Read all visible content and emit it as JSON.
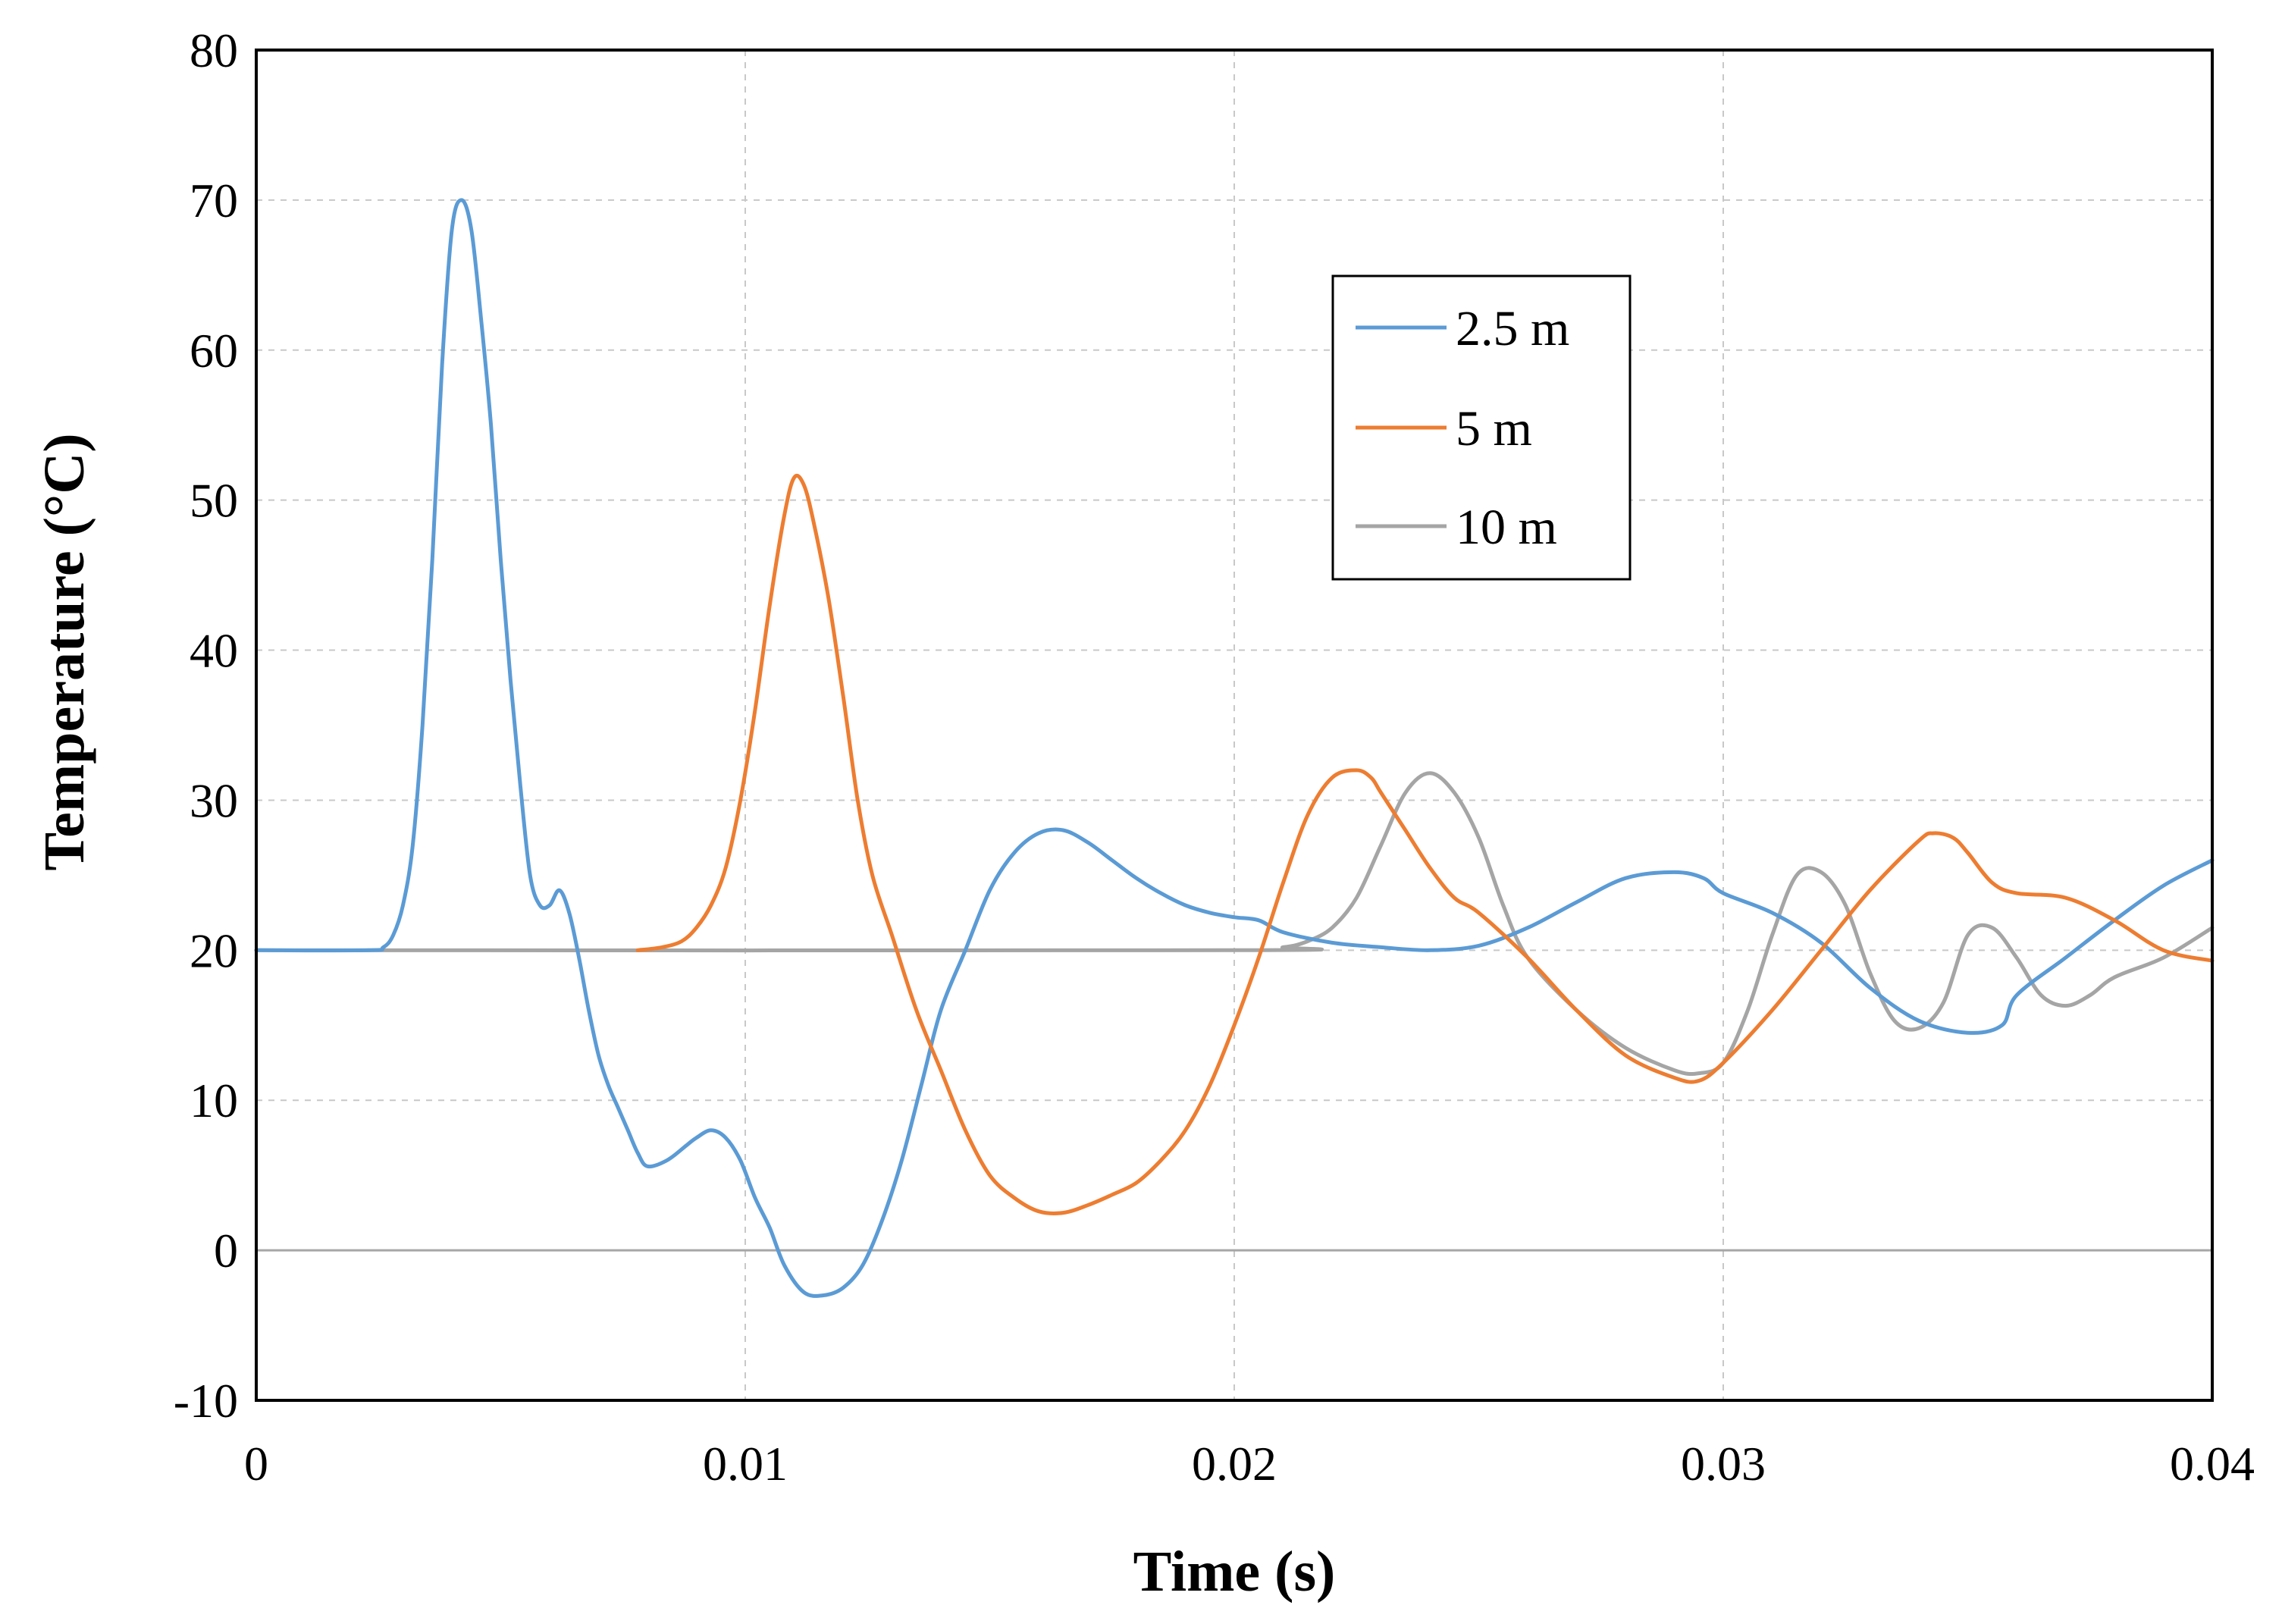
{
  "chart_data": {
    "type": "line",
    "title": "",
    "xlabel": "Time (s)",
    "ylabel": "Temperature (°C)",
    "xlim": [
      0,
      0.04
    ],
    "ylim": [
      -10,
      80
    ],
    "xticks": [
      0,
      0.01,
      0.02,
      0.03,
      0.04
    ],
    "xtick_labels": [
      "0",
      "0.01",
      "0.02",
      "0.03",
      "0.04"
    ],
    "yticks": [
      -10,
      0,
      10,
      20,
      30,
      40,
      50,
      60,
      70,
      80
    ],
    "ytick_labels": [
      "-10",
      "0",
      "10",
      "20",
      "30",
      "40",
      "50",
      "60",
      "70",
      "80"
    ],
    "grid": true,
    "legend_position": "top-right",
    "series": [
      {
        "name": "2.5 m",
        "color": "#5b9bd5",
        "x": [
          0,
          0.0023,
          0.0026,
          0.0028,
          0.003,
          0.0032,
          0.0034,
          0.0036,
          0.0038,
          0.004,
          0.0042,
          0.0044,
          0.0046,
          0.0048,
          0.005,
          0.0052,
          0.0054,
          0.0056,
          0.0058,
          0.006,
          0.0062,
          0.0064,
          0.0066,
          0.0068,
          0.007,
          0.0072,
          0.0074,
          0.0076,
          0.0078,
          0.008,
          0.0084,
          0.0088,
          0.009,
          0.0093,
          0.0096,
          0.0099,
          0.0102,
          0.0105,
          0.0108,
          0.0112,
          0.0116,
          0.012,
          0.0124,
          0.0128,
          0.0132,
          0.0136,
          0.014,
          0.0145,
          0.015,
          0.0155,
          0.016,
          0.0165,
          0.017,
          0.0175,
          0.018,
          0.0185,
          0.019,
          0.0195,
          0.02,
          0.0205,
          0.021,
          0.022,
          0.023,
          0.024,
          0.025,
          0.026,
          0.027,
          0.028,
          0.029,
          0.0296,
          0.03,
          0.031,
          0.032,
          0.033,
          0.034,
          0.035,
          0.0357,
          0.036,
          0.037,
          0.038,
          0.039,
          0.04
        ],
        "values": [
          20,
          20,
          20.2,
          21,
          23,
          27,
          35,
          46,
          59,
          68,
          70,
          68,
          62,
          55,
          46,
          38,
          31,
          25,
          23,
          23,
          24,
          22.5,
          19.5,
          16,
          13,
          11,
          9.5,
          8,
          6.5,
          5.6,
          6,
          7,
          7.5,
          8,
          7.5,
          6,
          3.5,
          1.5,
          -1,
          -2.8,
          -3,
          -2.5,
          -1,
          2,
          6,
          11,
          16,
          20,
          24,
          26.5,
          27.8,
          28,
          27.2,
          26,
          24.8,
          23.8,
          23,
          22.5,
          22.2,
          22,
          21.2,
          20.5,
          20.2,
          20,
          20.3,
          21.5,
          23.2,
          24.8,
          25.2,
          24.8,
          23.8,
          22.5,
          20.5,
          17.5,
          15.3,
          14.5,
          15,
          17,
          19.5,
          22,
          24.3,
          26
        ]
      },
      {
        "name": "5 m",
        "color": "#ed7d31",
        "x": [
          0.0078,
          0.0083,
          0.0087,
          0.009,
          0.0093,
          0.0096,
          0.0099,
          0.0102,
          0.0105,
          0.0108,
          0.011,
          0.0112,
          0.0114,
          0.0117,
          0.012,
          0.0123,
          0.0126,
          0.013,
          0.0135,
          0.014,
          0.0145,
          0.015,
          0.0155,
          0.016,
          0.0165,
          0.017,
          0.0175,
          0.018,
          0.0185,
          0.019,
          0.0195,
          0.02,
          0.0205,
          0.021,
          0.0215,
          0.022,
          0.0225,
          0.0228,
          0.023,
          0.0235,
          0.024,
          0.0245,
          0.025,
          0.026,
          0.027,
          0.028,
          0.029,
          0.0295,
          0.03,
          0.031,
          0.032,
          0.033,
          0.034,
          0.0343,
          0.0347,
          0.035,
          0.0355,
          0.036,
          0.037,
          0.038,
          0.039,
          0.04
        ],
        "values": [
          20,
          20.2,
          20.6,
          21.5,
          23,
          25.5,
          30,
          36,
          43,
          49,
          51.5,
          51,
          48.5,
          43.5,
          37,
          30,
          25,
          21,
          16,
          12,
          8,
          5,
          3.5,
          2.6,
          2.5,
          3,
          3.7,
          4.5,
          6,
          8,
          11,
          15,
          19.5,
          24.5,
          29,
          31.5,
          32,
          31.5,
          30.5,
          28,
          25.5,
          23.5,
          22.5,
          19.5,
          16,
          13,
          11.5,
          11.3,
          12.5,
          16,
          20,
          24,
          27.3,
          27.8,
          27.5,
          26.5,
          24.5,
          23.8,
          23.5,
          22,
          20,
          19.3
        ]
      },
      {
        "name": "10 m",
        "color": "#a5a5a5",
        "x": [
          0,
          0.02,
          0.021,
          0.0215,
          0.022,
          0.0225,
          0.023,
          0.0235,
          0.024,
          0.0245,
          0.025,
          0.0255,
          0.026,
          0.027,
          0.028,
          0.029,
          0.0295,
          0.03,
          0.0305,
          0.031,
          0.0315,
          0.032,
          0.0325,
          0.033,
          0.0335,
          0.034,
          0.0345,
          0.035,
          0.0355,
          0.036,
          0.0365,
          0.037,
          0.0375,
          0.038,
          0.039,
          0.04
        ],
        "values": [
          20,
          20,
          20.2,
          20.6,
          21.5,
          23.5,
          27,
          30.5,
          31.8,
          30.5,
          27.5,
          23,
          19.5,
          16,
          13.5,
          12,
          11.8,
          12.5,
          16,
          21,
          25,
          25.2,
          23,
          18.5,
          15.3,
          14.8,
          16.5,
          21,
          21.5,
          19.5,
          17,
          16.3,
          17,
          18.2,
          19.5,
          21.5
        ]
      }
    ]
  }
}
